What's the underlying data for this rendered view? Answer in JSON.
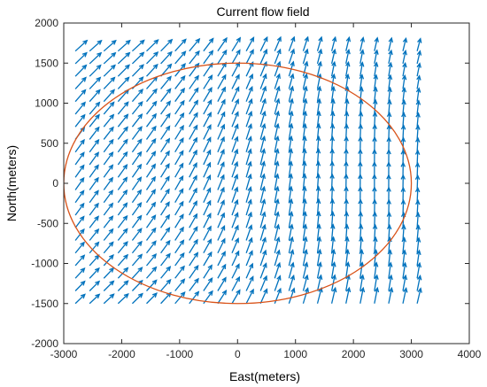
{
  "chart_data": {
    "type": "quiver",
    "title": "Current flow field",
    "xlabel": "East(meters)",
    "ylabel": "North(meters)",
    "xlim": [
      -3000,
      4000
    ],
    "ylim": [
      -2000,
      2000
    ],
    "x_ticks": [
      "-3000",
      "-2000",
      "-1000",
      "0",
      "1000",
      "2000",
      "3000",
      "4000"
    ],
    "y_ticks": [
      "-2000",
      "-1500",
      "-1000",
      "-500",
      "0",
      "500",
      "1000",
      "1500",
      "2000"
    ],
    "grid": false,
    "box": true,
    "vector_field": {
      "x_range": [
        -2800,
        3100
      ],
      "y_range": [
        -1500,
        1650
      ],
      "nx": 25,
      "ny": 21,
      "color": "#0072BD",
      "dominant_direction": "north-northeast"
    },
    "ellipse": {
      "center": [
        0,
        0
      ],
      "semi_axis_east": 3000,
      "semi_axis_north": 1500,
      "color": "#D95319"
    }
  }
}
